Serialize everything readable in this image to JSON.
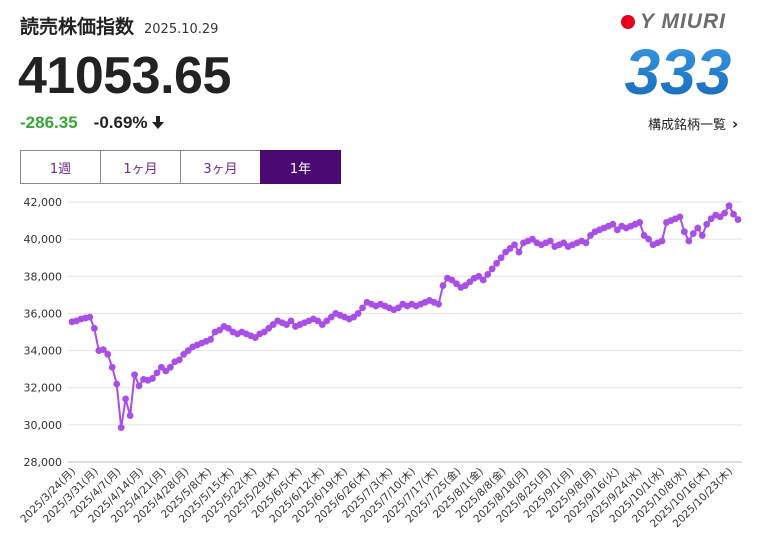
{
  "header": {
    "index_name": "読売株価指数",
    "date": "2025.10.29",
    "value": "41053.65",
    "change_abs": "-286.35",
    "change_pct": "-0.69%"
  },
  "logo": {
    "wordmark": "Y MIURI",
    "numerals": "333"
  },
  "links": {
    "constituents": "構成銘柄一覧"
  },
  "tabs": [
    {
      "label": "1週",
      "active": false
    },
    {
      "label": "1ヶ月",
      "active": false
    },
    {
      "label": "3ヶ月",
      "active": false
    },
    {
      "label": "1年",
      "active": true
    }
  ],
  "colors": {
    "line": "#a94ee6",
    "change_down": "#3aa63a",
    "tab_active": "#4b0a73",
    "logo_blue": "#1f77c7",
    "logo_red": "#e4001b"
  },
  "icons": {
    "change_direction": "arrow-down-icon",
    "link": "chevron-right-icon"
  },
  "chart_data": {
    "type": "line",
    "ylim": [
      28000,
      42000
    ],
    "yticks": [
      28000,
      30000,
      32000,
      34000,
      36000,
      38000,
      40000,
      42000
    ],
    "grid": true,
    "x_tick_labels": [
      "2025/3/24(月)",
      "2025/3/31(月)",
      "2025/4/7(月)",
      "2025/4/14(月)",
      "2025/4/21(月)",
      "2025/4/28(月)",
      "2025/5/8(木)",
      "2025/5/15(木)",
      "2025/5/22(木)",
      "2025/5/29(木)",
      "2025/6/5(木)",
      "2025/6/12(木)",
      "2025/6/19(木)",
      "2025/6/26(木)",
      "2025/7/3(木)",
      "2025/7/10(木)",
      "2025/7/17(木)",
      "2025/7/25(金)",
      "2025/8/1(金)",
      "2025/8/8(金)",
      "2025/8/18(月)",
      "2025/8/25(月)",
      "2025/9/1(月)",
      "2025/9/8(月)",
      "2025/9/16(火)",
      "2025/9/24(水)",
      "2025/10/1(水)",
      "2025/10/8(水)",
      "2025/10/16(木)",
      "2025/10/23(木)"
    ],
    "values": [
      35550,
      35600,
      35700,
      35750,
      35800,
      35200,
      34000,
      34050,
      33800,
      33100,
      32200,
      29850,
      31400,
      30500,
      32700,
      32100,
      32450,
      32400,
      32500,
      32800,
      33100,
      32900,
      33100,
      33400,
      33500,
      33800,
      34000,
      34200,
      34300,
      34400,
      34500,
      34600,
      35000,
      35100,
      35300,
      35200,
      35000,
      34900,
      35000,
      34900,
      34800,
      34700,
      34900,
      35000,
      35200,
      35400,
      35600,
      35500,
      35400,
      35600,
      35300,
      35400,
      35500,
      35600,
      35700,
      35600,
      35400,
      35600,
      35800,
      36000,
      35900,
      35800,
      35700,
      35800,
      36000,
      36300,
      36600,
      36500,
      36400,
      36500,
      36400,
      36300,
      36200,
      36300,
      36500,
      36400,
      36500,
      36400,
      36500,
      36600,
      36700,
      36600,
      36500,
      37500,
      37900,
      37800,
      37600,
      37400,
      37500,
      37700,
      37900,
      38000,
      37800,
      38100,
      38400,
      38700,
      39000,
      39300,
      39500,
      39700,
      39300,
      39800,
      39900,
      40000,
      39800,
      39700,
      39800,
      39900,
      39600,
      39700,
      39800,
      39600,
      39700,
      39800,
      39900,
      39800,
      40200,
      40400,
      40500,
      40600,
      40700,
      40800,
      40500,
      40700,
      40600,
      40700,
      40800,
      40900,
      40200,
      40000,
      39700,
      39800,
      39900,
      40900,
      41000,
      41100,
      41200,
      40400,
      39900,
      40300,
      40600,
      40200,
      40800,
      41100,
      41300,
      41200,
      41400,
      41800,
      41339,
      41054
    ]
  }
}
